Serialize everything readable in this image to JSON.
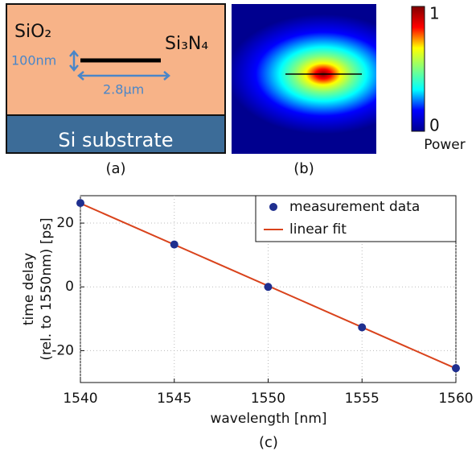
{
  "diagram": {
    "cladding": "SiO₂",
    "core": "Si₃N₄",
    "thickness": "100nm",
    "width": "2.8µm",
    "substrate": "Si substrate",
    "caption": "(a)"
  },
  "mode_image": {
    "colormap": "jet",
    "clim": [
      0,
      1
    ],
    "cticks": [
      0,
      1
    ],
    "colorbar_label": "Power",
    "caption": "(b)"
  },
  "chart_data": {
    "type": "scatter",
    "caption": "(c)",
    "xlabel": "wavelength [nm]",
    "ylabel": [
      "time delay",
      "(rel. to 1550nm) [ps]"
    ],
    "series": [
      {
        "name": "measurement data",
        "color": "#1f2f8f",
        "kind": "scatter",
        "x": [
          1540,
          1545,
          1550,
          1555,
          1560
        ],
        "values": [
          26.3,
          13.3,
          0,
          -12.7,
          -25.5
        ]
      },
      {
        "name": "linear fit",
        "color": "#d9431c",
        "kind": "line",
        "x": [
          1540,
          1560
        ],
        "values": [
          26.2,
          -25.6
        ]
      }
    ],
    "xlim": [
      1540,
      1560
    ],
    "xticks": [
      1540,
      1545,
      1550,
      1555,
      1560
    ],
    "ylim": [
      -30,
      28.6
    ],
    "yticks": [
      -20,
      0,
      20
    ],
    "grid": true,
    "legend": "upper right"
  }
}
